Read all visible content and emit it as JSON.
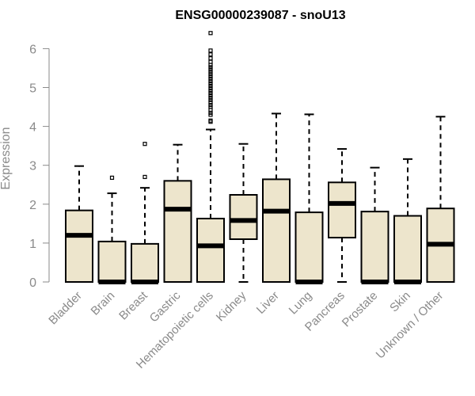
{
  "chart_data": {
    "type": "boxplot",
    "title": "ENSG00000239087 - snoU13",
    "xlabel": "",
    "ylabel": "Expression",
    "ylim": [
      0,
      6.5
    ],
    "yticks": [
      0,
      1,
      2,
      3,
      4,
      5,
      6
    ],
    "grid": false,
    "box_fill": "#ede5cc",
    "box_stroke": "#000000",
    "categories": [
      "Bladder",
      "Brain",
      "Breast",
      "Gastric",
      "Hematopoietic cells",
      "Kidney",
      "Liver",
      "Lung",
      "Pancreas",
      "Prostate",
      "Skin",
      "Unknown / Other"
    ],
    "boxes": [
      {
        "min": 0,
        "q1": 0,
        "median": 1.2,
        "q3": 1.84,
        "max": 2.98,
        "outliers": []
      },
      {
        "min": 0,
        "q1": 0,
        "median": 0,
        "q3": 1.04,
        "max": 2.28,
        "outliers": [
          2.68
        ]
      },
      {
        "min": 0,
        "q1": 0,
        "median": 0,
        "q3": 0.98,
        "max": 2.42,
        "outliers": [
          2.7,
          3.55
        ]
      },
      {
        "min": 0,
        "q1": 0,
        "median": 1.87,
        "q3": 2.6,
        "max": 3.53,
        "outliers": []
      },
      {
        "min": 0,
        "q1": 0,
        "median": 0.93,
        "q3": 1.63,
        "max": 3.92,
        "outliers": [
          4.12,
          4.15,
          4.3,
          4.35,
          4.42,
          4.5,
          4.55,
          4.62,
          4.68,
          4.74,
          4.8,
          4.86,
          4.92,
          4.98,
          5.04,
          5.1,
          5.16,
          5.22,
          5.28,
          5.34,
          5.4,
          5.46,
          5.52,
          5.58,
          5.66,
          5.75,
          5.85,
          5.95,
          6.4
        ]
      },
      {
        "min": 0,
        "q1": 1.1,
        "median": 1.58,
        "q3": 2.24,
        "max": 3.55,
        "outliers": []
      },
      {
        "min": 0,
        "q1": 0,
        "median": 1.82,
        "q3": 2.64,
        "max": 4.33,
        "outliers": []
      },
      {
        "min": 0,
        "q1": 0,
        "median": 0,
        "q3": 1.79,
        "max": 4.31,
        "outliers": []
      },
      {
        "min": 0,
        "q1": 1.14,
        "median": 2.02,
        "q3": 2.56,
        "max": 3.42,
        "outliers": []
      },
      {
        "min": 0,
        "q1": 0,
        "median": 0,
        "q3": 1.81,
        "max": 2.94,
        "outliers": []
      },
      {
        "min": 0,
        "q1": 0,
        "median": 0,
        "q3": 1.7,
        "max": 3.16,
        "outliers": []
      },
      {
        "min": 0,
        "q1": 0,
        "median": 0.97,
        "q3": 1.89,
        "max": 4.25,
        "outliers": []
      }
    ]
  }
}
